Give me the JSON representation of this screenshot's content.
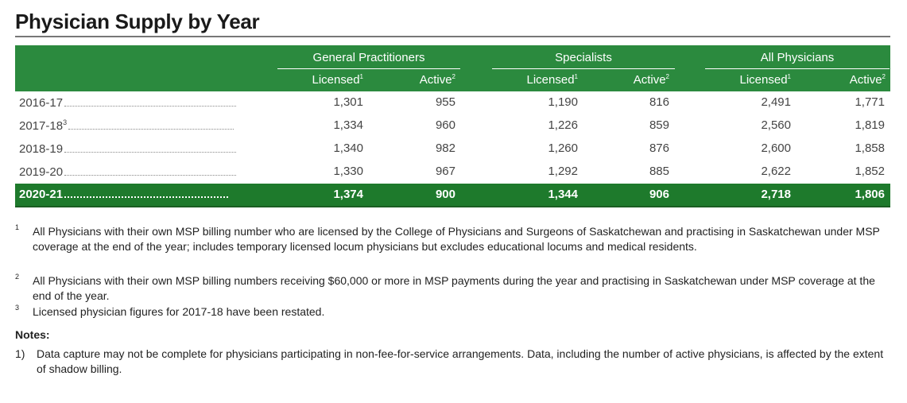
{
  "title": "Physician Supply by Year",
  "colors": {
    "header_green": "#2b8a3e",
    "total_green": "#1e7a2c"
  },
  "table": {
    "groups": [
      "General Practitioners",
      "Specialists",
      "All Physicians"
    ],
    "subheaders": [
      {
        "label": "Licensed",
        "sup": "1"
      },
      {
        "label": "Active",
        "sup": "2"
      }
    ],
    "rows": [
      {
        "year": "2016-17",
        "sup": "",
        "values": [
          "1,301",
          "955",
          "1,190",
          "816",
          "2,491",
          "1,771"
        ]
      },
      {
        "year": "2017-18",
        "sup": "3",
        "values": [
          "1,334",
          "960",
          "1,226",
          "859",
          "2,560",
          "1,819"
        ]
      },
      {
        "year": "2018-19",
        "sup": "",
        "values": [
          "1,340",
          "982",
          "1,260",
          "876",
          "2,600",
          "1,858"
        ]
      },
      {
        "year": "2019-20",
        "sup": "",
        "values": [
          "1,330",
          "967",
          "1,292",
          "885",
          "2,622",
          "1,852"
        ]
      }
    ],
    "total_row": {
      "year": "2020-21",
      "values": [
        "1,374",
        "900",
        "1,344",
        "906",
        "2,718",
        "1,806"
      ]
    }
  },
  "footnotes": [
    {
      "mark": "1",
      "text": "All Physicians with their own MSP billing number who are licensed by the College of Physicians and Surgeons of Saskatchewan and practising in Saskatchewan under MSP coverage at the end of the year; includes temporary licensed locum physicians but excludes educational locums and medical residents."
    },
    {
      "mark": "2",
      "text": "All Physicians with their own MSP billing numbers receiving $60,000 or more in MSP payments during the year and practising in Saskatchewan under MSP coverage at the end of the year."
    },
    {
      "mark": "3",
      "text": "Licensed physician figures for 2017-18 have been restated."
    }
  ],
  "notes": {
    "heading": "Notes:",
    "items": [
      {
        "mark": "1)",
        "text": "Data capture may not be complete for physicians participating in non-fee-for-service arrangements. Data, including the number of active physicians, is affected by the extent of shadow billing."
      }
    ]
  }
}
